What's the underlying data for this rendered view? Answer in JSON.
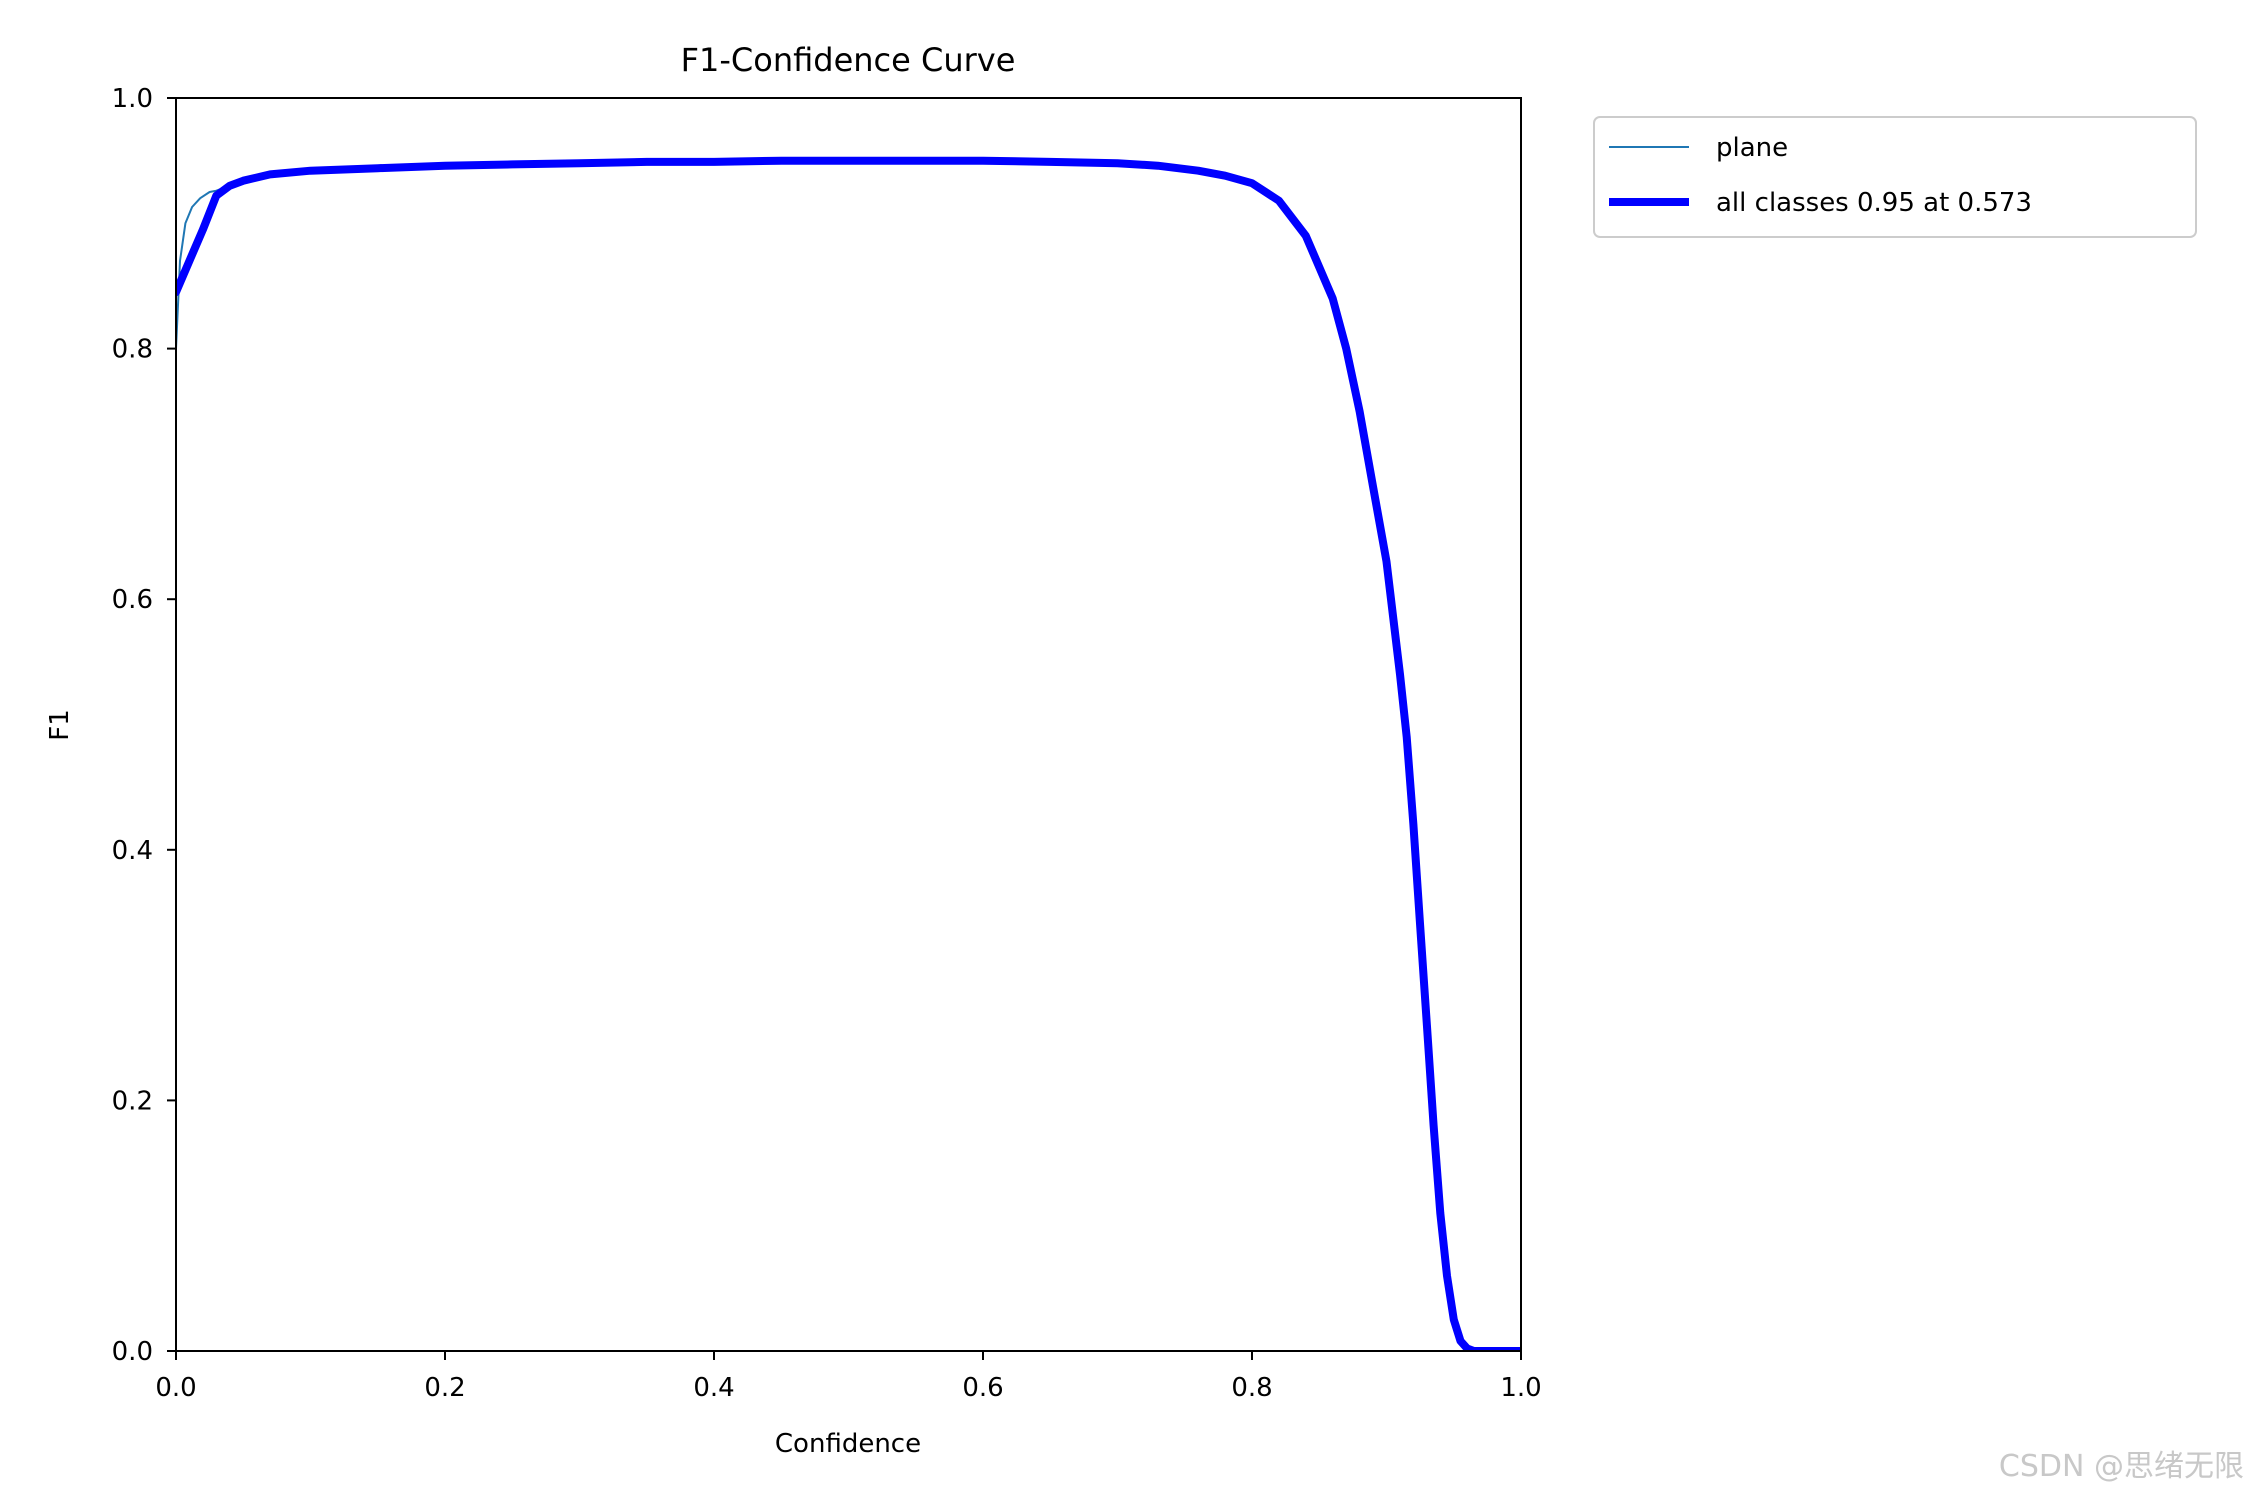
{
  "chart_data": {
    "type": "line",
    "title": "F1-Confidence Curve",
    "xlabel": "Confidence",
    "ylabel": "F1",
    "xlim": [
      0.0,
      1.0
    ],
    "ylim": [
      0.0,
      1.0
    ],
    "xticks": [
      "0.0",
      "0.2",
      "0.4",
      "0.6",
      "0.8",
      "1.0"
    ],
    "yticks": [
      "0.0",
      "0.2",
      "0.4",
      "0.6",
      "0.8",
      "1.0"
    ],
    "grid": false,
    "legend_position": "outside-upper-right",
    "series": [
      {
        "name": "plane",
        "color": "#1f77b4",
        "style": "thin",
        "x": [
          0.0,
          0.003,
          0.007,
          0.012,
          0.018,
          0.025,
          0.03,
          0.04,
          0.05,
          0.07,
          0.1,
          0.15,
          0.2,
          0.25,
          0.3,
          0.35,
          0.4,
          0.45,
          0.5,
          0.55,
          0.6,
          0.65,
          0.7,
          0.73,
          0.76,
          0.78,
          0.8,
          0.82,
          0.84,
          0.86,
          0.87,
          0.88,
          0.89,
          0.9,
          0.91,
          0.915,
          0.92,
          0.925,
          0.93,
          0.935,
          0.94,
          0.945,
          0.95,
          0.955,
          0.96,
          0.965,
          0.97,
          0.98,
          0.99,
          1.0
        ],
        "y": [
          0.8,
          0.87,
          0.9,
          0.913,
          0.92,
          0.925,
          0.926,
          0.93,
          0.935,
          0.94,
          0.942,
          0.944,
          0.946,
          0.947,
          0.948,
          0.949,
          0.949,
          0.95,
          0.95,
          0.95,
          0.95,
          0.949,
          0.948,
          0.946,
          0.942,
          0.938,
          0.932,
          0.918,
          0.89,
          0.84,
          0.8,
          0.75,
          0.69,
          0.63,
          0.53,
          0.48,
          0.41,
          0.33,
          0.25,
          0.17,
          0.1,
          0.05,
          0.02,
          0.006,
          0.001,
          0.0,
          0.0,
          0.0,
          0.0,
          0.0
        ]
      },
      {
        "name": "all classes 0.95 at 0.573",
        "color": "#0000ff",
        "style": "thick",
        "x": [
          0.0,
          0.01,
          0.02,
          0.03,
          0.04,
          0.05,
          0.07,
          0.1,
          0.15,
          0.2,
          0.25,
          0.3,
          0.35,
          0.4,
          0.45,
          0.5,
          0.55,
          0.573,
          0.6,
          0.65,
          0.7,
          0.73,
          0.76,
          0.78,
          0.8,
          0.82,
          0.84,
          0.86,
          0.87,
          0.88,
          0.89,
          0.9,
          0.91,
          0.915,
          0.92,
          0.925,
          0.93,
          0.935,
          0.94,
          0.945,
          0.95,
          0.955,
          0.96,
          0.965,
          0.97,
          0.98,
          0.99,
          1.0
        ],
        "y": [
          0.845,
          0.87,
          0.895,
          0.922,
          0.93,
          0.934,
          0.939,
          0.942,
          0.944,
          0.946,
          0.947,
          0.948,
          0.949,
          0.949,
          0.95,
          0.95,
          0.95,
          0.95,
          0.95,
          0.949,
          0.948,
          0.946,
          0.942,
          0.938,
          0.932,
          0.918,
          0.89,
          0.84,
          0.8,
          0.75,
          0.69,
          0.63,
          0.54,
          0.49,
          0.42,
          0.34,
          0.26,
          0.18,
          0.11,
          0.06,
          0.025,
          0.008,
          0.002,
          0.0,
          0.0,
          0.0,
          0.0,
          0.0
        ]
      }
    ]
  },
  "watermark": "CSDN @思绪无限"
}
